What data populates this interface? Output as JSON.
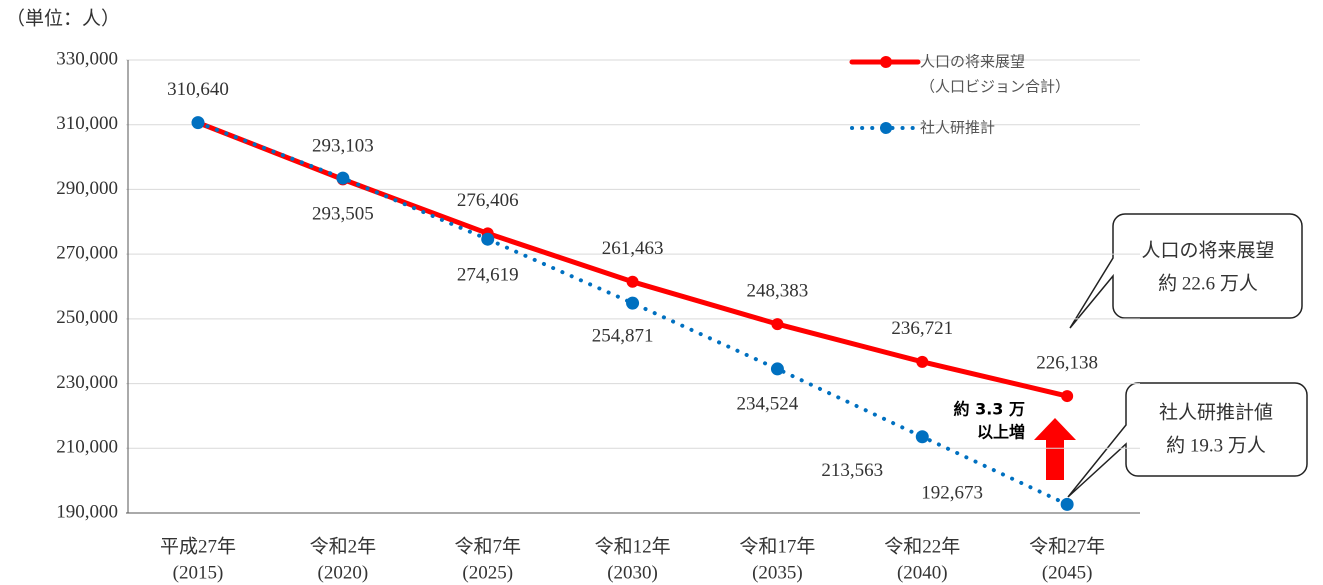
{
  "chart_data": {
    "type": "line",
    "unit_label": "（単位：人）",
    "categories": [
      [
        "平成27年",
        "(2015)"
      ],
      [
        "令和2年",
        "(2020)"
      ],
      [
        "令和7年",
        "(2025)"
      ],
      [
        "令和12年",
        "(2030)"
      ],
      [
        "令和17年",
        "(2035)"
      ],
      [
        "令和22年",
        "(2040)"
      ],
      [
        "令和27年",
        "(2045)"
      ]
    ],
    "series": [
      {
        "name": "人口の将来展望",
        "name_sub": "（人口ビジョン合計）",
        "color": "#ff0000",
        "style": "solid",
        "values": [
          310640,
          293103,
          276406,
          261463,
          248383,
          236721,
          226138
        ],
        "value_labels": [
          "310,640",
          "293,103",
          "276,406",
          "261,463",
          "248,383",
          "236,721",
          "226,138"
        ]
      },
      {
        "name": "社人研推計",
        "color": "#0070c0",
        "style": "dotted",
        "values": [
          310640,
          293505,
          274619,
          254871,
          234524,
          213563,
          192673
        ],
        "value_labels": [
          null,
          "293,505",
          "274,619",
          "254,871",
          "234,524",
          "213,563",
          "192,673"
        ]
      }
    ],
    "ylim": [
      190000,
      330000
    ],
    "yticks": [
      {
        "value": 190000,
        "label": "190,000"
      },
      {
        "value": 210000,
        "label": "210,000"
      },
      {
        "value": 230000,
        "label": "230,000"
      },
      {
        "value": 250000,
        "label": "250,000"
      },
      {
        "value": 270000,
        "label": "270,000"
      },
      {
        "value": 290000,
        "label": "290,000"
      },
      {
        "value": 310000,
        "label": "310,000"
      },
      {
        "value": 330000,
        "label": "330,000"
      }
    ],
    "grid": true,
    "annotations": {
      "callout_1": [
        "人口の将来展望",
        "約 22.6 万人"
      ],
      "callout_2": [
        "社人研推計値",
        "約 19.3 万人"
      ],
      "difference": [
        "約 3.3 万",
        "以上増"
      ]
    }
  }
}
